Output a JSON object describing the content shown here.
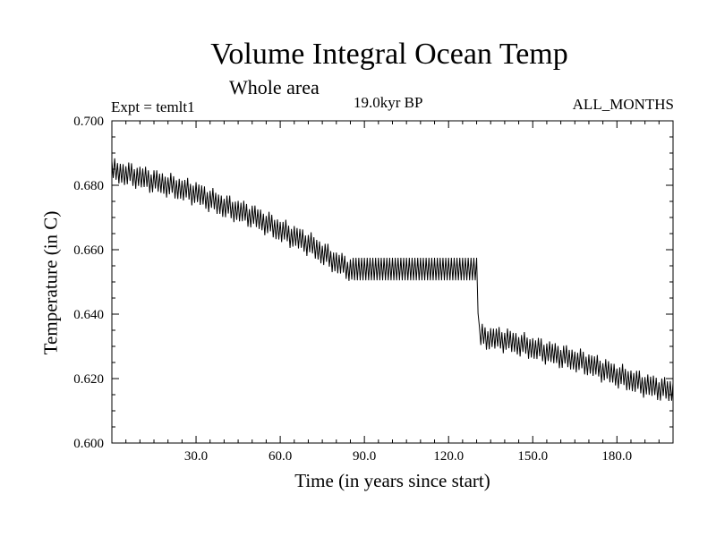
{
  "chart_data": {
    "type": "line",
    "title": "Volume Integral Ocean Temp",
    "subtitle": "Whole area",
    "experiment": "Expt = temlt1",
    "period": "19.0kyr BP",
    "months": "ALL_MONTHS",
    "xlabel": "Time (in years since start)",
    "ylabel": "Temperature (in C)",
    "xlim": [
      0,
      200
    ],
    "ylim": [
      0.6,
      0.7
    ],
    "xticks": [
      30,
      60,
      90,
      120,
      150,
      180
    ],
    "xtick_labels": [
      "30.0",
      "60.0",
      "90.0",
      "120.0",
      "150.0",
      "180.0"
    ],
    "yticks": [
      0.6,
      0.62,
      0.64,
      0.66,
      0.68,
      0.7
    ],
    "ytick_labels": [
      "0.600",
      "0.620",
      "0.640",
      "0.660",
      "0.680",
      "0.700"
    ],
    "series": [
      {
        "name": "Volume integral ocean temperature",
        "mean_trend": {
          "x": [
            0,
            10,
            20,
            30,
            40,
            50,
            60,
            70,
            80,
            85,
            130,
            131,
            140,
            150,
            160,
            170,
            180,
            190,
            200
          ],
          "y": [
            0.6845,
            0.6825,
            0.68,
            0.6775,
            0.6735,
            0.6705,
            0.666,
            0.662,
            0.656,
            0.654,
            0.654,
            0.633,
            0.632,
            0.6295,
            0.627,
            0.6245,
            0.621,
            0.618,
            0.616
          ]
        },
        "band_half_width": {
          "x": [
            0,
            85,
            86,
            130,
            131,
            200
          ],
          "y": [
            0.003,
            0.003,
            0.0035,
            0.0035,
            0.003,
            0.003
          ]
        }
      }
    ]
  }
}
